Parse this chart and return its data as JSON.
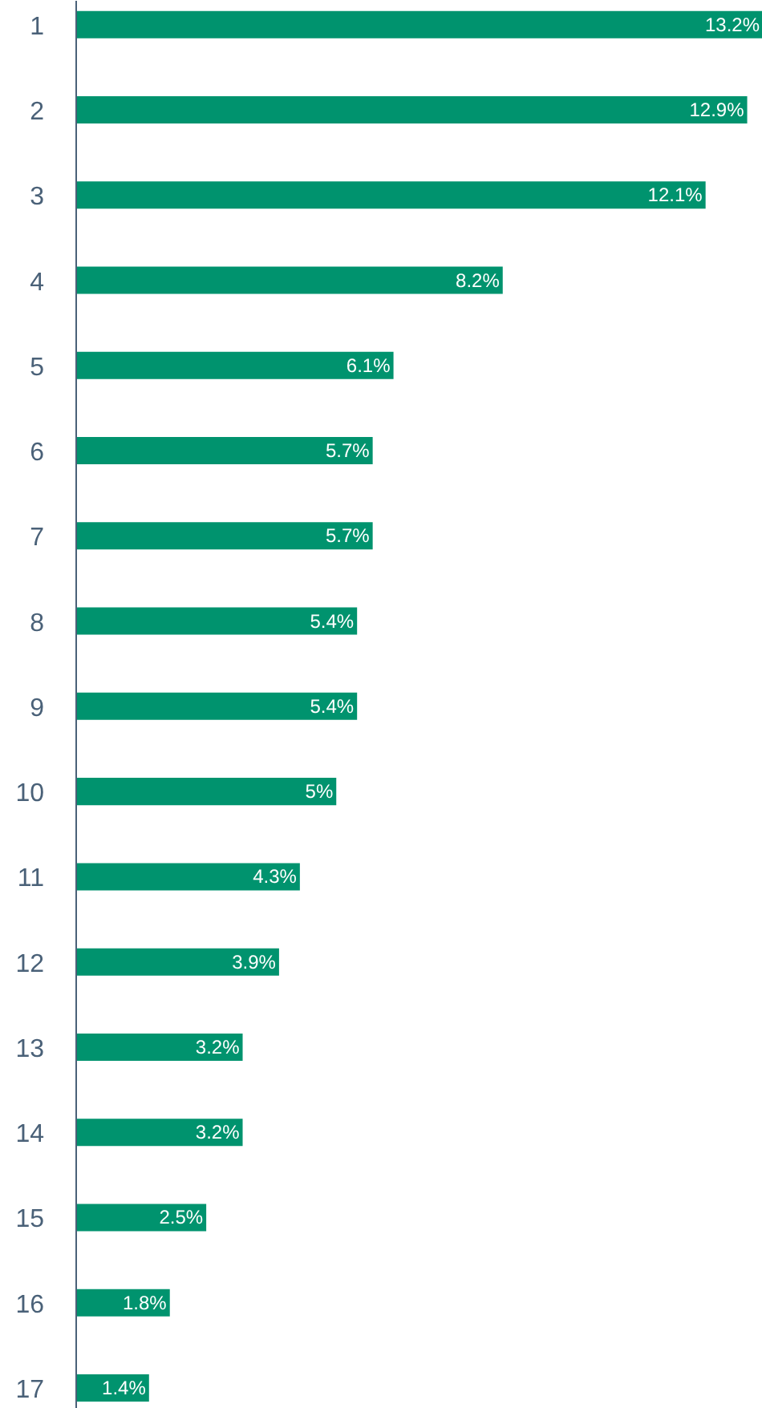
{
  "chart_data": {
    "type": "bar",
    "orientation": "horizontal",
    "categories": [
      "1",
      "2",
      "3",
      "4",
      "5",
      "6",
      "7",
      "8",
      "9",
      "10",
      "11",
      "12",
      "13",
      "14",
      "15",
      "16",
      "17"
    ],
    "values": [
      13.2,
      12.9,
      12.1,
      8.2,
      6.1,
      5.7,
      5.7,
      5.4,
      5.4,
      5,
      4.3,
      3.9,
      3.2,
      3.2,
      2.5,
      1.8,
      1.4
    ],
    "value_labels": [
      "13.2%",
      "12.9%",
      "12.1%",
      "8.2%",
      "6.1%",
      "5.7%",
      "5.7%",
      "5.4%",
      "5.4%",
      "5%",
      "4.3%",
      "3.9%",
      "3.2%",
      "3.2%",
      "2.5%",
      "1.8%",
      "1.4%"
    ],
    "color": "#00936e",
    "tick_labels": "y",
    "grid": false
  }
}
